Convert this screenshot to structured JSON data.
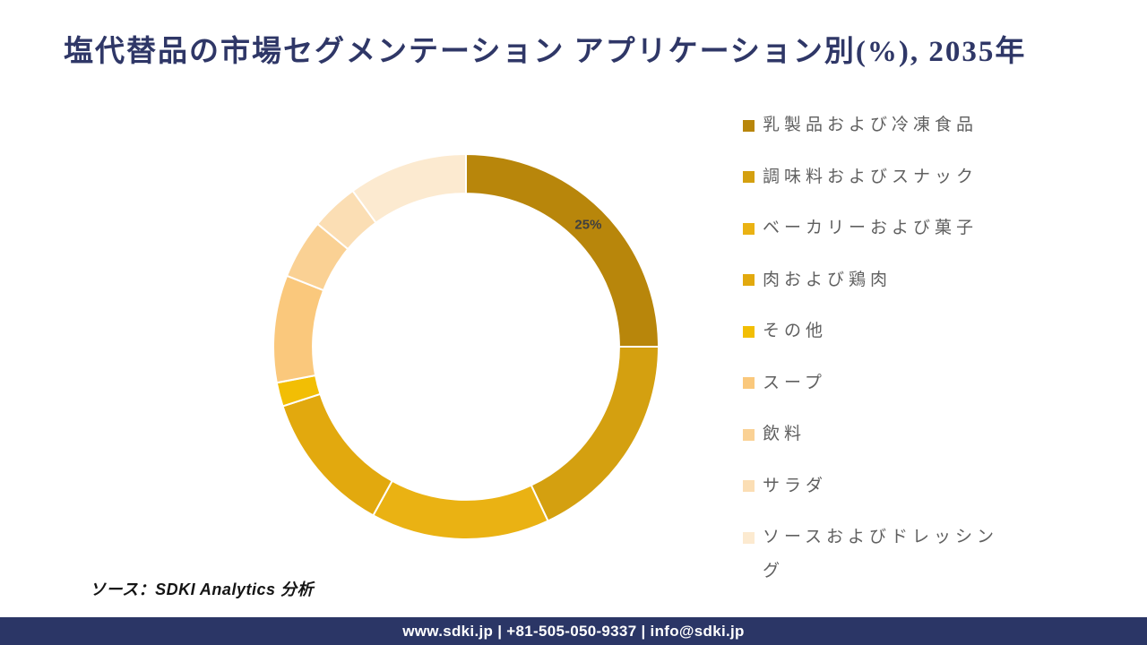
{
  "page": {
    "title": "塩代替品の市場セグメンテーション アプリケーション別(%), 2035年",
    "source_note": "ソース：SDKI Analytics 分析",
    "footer": "www.sdki.jp | +81-505-050-9337 | info@sdki.jp"
  },
  "colors": {
    "title_navy": "#2F3767",
    "footer_navy": "#2B3666",
    "legend_text": "#606060",
    "data_label": "#3F3F3F",
    "segment_gap": "#FFFFFF",
    "background": "#FFFFFF"
  },
  "chart_data": {
    "type": "pie",
    "subtype": "donut",
    "title": "塩代替品の市場セグメンテーション アプリケーション別(%), 2035年",
    "unit": "%",
    "legend_position": "right",
    "start_angle_deg": 0,
    "direction": "clockwise",
    "inner_radius_ratio": 0.795,
    "grid": false,
    "segments": [
      {
        "label": "乳製品および冷凍食品",
        "value": 25,
        "color": "#B8860B",
        "data_label": "25%"
      },
      {
        "label": "調味料およびスナック",
        "value": 18,
        "color": "#D4A010",
        "data_label": ""
      },
      {
        "label": "ベーカリーおよび菓子",
        "value": 15,
        "color": "#EAB213",
        "data_label": ""
      },
      {
        "label": "肉および鶏肉",
        "value": 12,
        "color": "#E2A90E",
        "data_label": ""
      },
      {
        "label": "その他",
        "value": 2,
        "color": "#F2BE04",
        "data_label": ""
      },
      {
        "label": "スープ",
        "value": 9,
        "color": "#FAC87C",
        "data_label": ""
      },
      {
        "label": "飲料",
        "value": 5,
        "color": "#FAD194",
        "data_label": ""
      },
      {
        "label": "サラダ",
        "value": 4,
        "color": "#FBDEB4",
        "data_label": ""
      },
      {
        "label": "ソースおよびドレッシング",
        "value": 10,
        "color": "#FCEAD0",
        "data_label": ""
      }
    ]
  }
}
